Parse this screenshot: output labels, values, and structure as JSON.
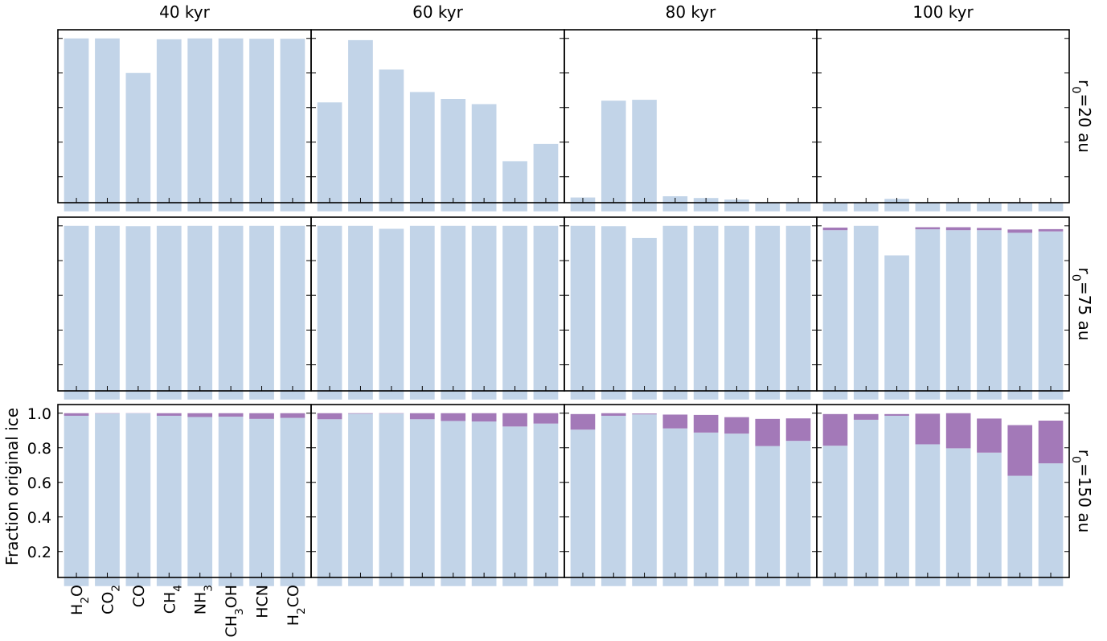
{
  "chart_data": {
    "type": "bar",
    "layout": "grid",
    "stacked": true,
    "categories": [
      "H2O",
      "CO2",
      "CO",
      "CH4",
      "NH3",
      "CH3OH",
      "HCN",
      "H2CO"
    ],
    "category_labels": [
      {
        "base": "H",
        "sub": "2",
        "rest": "O"
      },
      {
        "base": "CO",
        "sub": "2",
        "rest": ""
      },
      {
        "base": "CO",
        "sub": "",
        "rest": ""
      },
      {
        "base": "CH",
        "sub": "4",
        "rest": ""
      },
      {
        "base": "NH",
        "sub": "3",
        "rest": ""
      },
      {
        "base": "CH",
        "sub": "3",
        "rest": "OH"
      },
      {
        "base": "HCN",
        "sub": "",
        "rest": ""
      },
      {
        "base": "H",
        "sub": "2",
        "rest": "CO"
      }
    ],
    "column_titles": [
      "40 kyr",
      "60 kyr",
      "80 kyr",
      "100 kyr"
    ],
    "row_labels": [
      {
        "base": "r",
        "sub": "0",
        "rest": "=20 au"
      },
      {
        "base": "r",
        "sub": "0",
        "rest": "=75 au"
      },
      {
        "base": "r",
        "sub": "0",
        "rest": "=150 au"
      }
    ],
    "ylabel": "Fraction original ice",
    "ylim": [
      0.05,
      1.05
    ],
    "yticks": [
      0.2,
      0.4,
      0.6,
      0.8,
      1.0
    ],
    "ytick_labels": [
      "0.2",
      "0.4",
      "0.6",
      "0.8",
      "1.0"
    ],
    "colors": {
      "base": "#c2d4e8",
      "top": "#a379b8",
      "axis": "#000000"
    },
    "panels": [
      [
        {
          "base": [
            1.0,
            1.0,
            0.8,
            0.995,
            1.0,
            1.0,
            0.998,
            0.998
          ],
          "top": [
            0,
            0,
            0,
            0,
            0,
            0,
            0,
            0
          ]
        },
        {
          "base": [
            0.63,
            0.99,
            0.82,
            0.69,
            0.65,
            0.62,
            0.29,
            0.39
          ],
          "top": [
            0,
            0,
            0,
            0,
            0,
            0,
            0,
            0
          ]
        },
        {
          "base": [
            0.08,
            0.64,
            0.645,
            0.087,
            0.077,
            0.068,
            0.05,
            0.05
          ],
          "top": [
            0,
            0,
            0,
            0,
            0,
            0,
            0,
            0
          ]
        },
        {
          "base": [
            0.05,
            0.05,
            0.072,
            0.05,
            0.05,
            0.05,
            0.05,
            0.05
          ],
          "top": [
            0,
            0,
            0,
            0,
            0,
            0,
            0,
            0
          ]
        }
      ],
      [
        {
          "base": [
            1.0,
            1.0,
            0.998,
            1.0,
            1.0,
            1.0,
            1.0,
            1.0
          ],
          "top": [
            0,
            0,
            0,
            0,
            0,
            0,
            0,
            0
          ]
        },
        {
          "base": [
            1.0,
            1.0,
            0.983,
            1.0,
            1.0,
            1.0,
            1.0,
            1.0
          ],
          "top": [
            0,
            0,
            0,
            0,
            0,
            0,
            0,
            0
          ]
        },
        {
          "base": [
            1.0,
            0.998,
            0.93,
            1.0,
            1.0,
            1.0,
            1.0,
            1.0
          ],
          "top": [
            0,
            0,
            0,
            0,
            0,
            0,
            0,
            0
          ]
        },
        {
          "base": [
            0.975,
            1.0,
            0.83,
            0.98,
            0.975,
            0.975,
            0.96,
            0.968
          ],
          "top": [
            0.015,
            0,
            0,
            0.012,
            0.017,
            0.013,
            0.019,
            0.013
          ]
        }
      ],
      [
        {
          "base": [
            0.985,
            0.998,
            0.999,
            0.985,
            0.978,
            0.98,
            0.967,
            0.973
          ],
          "top": [
            0.015,
            0.002,
            0.001,
            0.015,
            0.022,
            0.02,
            0.033,
            0.027
          ]
        },
        {
          "base": [
            0.965,
            0.997,
            0.998,
            0.965,
            0.955,
            0.952,
            0.923,
            0.94
          ],
          "top": [
            0.035,
            0.003,
            0.002,
            0.035,
            0.045,
            0.048,
            0.077,
            0.06
          ]
        },
        {
          "base": [
            0.905,
            0.985,
            0.993,
            0.912,
            0.888,
            0.882,
            0.81,
            0.84
          ],
          "top": [
            0.09,
            0.015,
            0.005,
            0.08,
            0.102,
            0.095,
            0.157,
            0.13
          ]
        },
        {
          "base": [
            0.812,
            0.962,
            0.985,
            0.82,
            0.797,
            0.772,
            0.638,
            0.71
          ],
          "top": [
            0.183,
            0.033,
            0.01,
            0.177,
            0.203,
            0.197,
            0.293,
            0.247
          ]
        }
      ]
    ]
  }
}
